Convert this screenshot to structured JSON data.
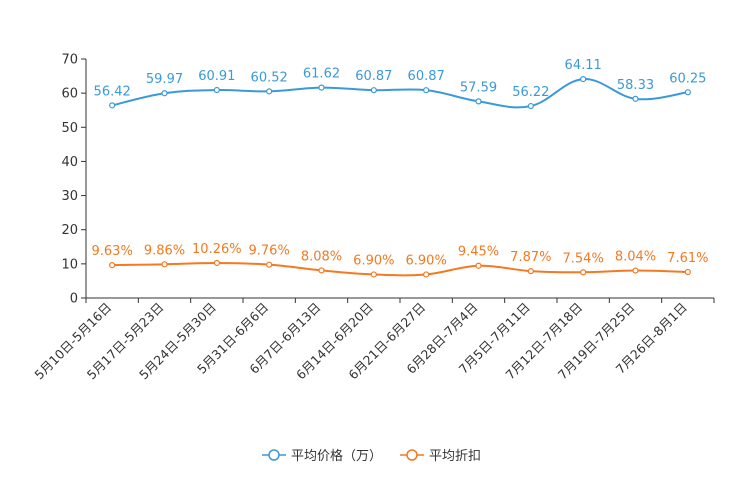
{
  "chart_data": {
    "type": "line",
    "categories": [
      "5月10日-5月16日",
      "5月17日-5月23日",
      "5月24日-5月30日",
      "5月31日-6月6日",
      "6月7日-6月13日",
      "6月14日-6月20日",
      "6月21日-6月27日",
      "6月28日-7月4日",
      "7月5日-7月11日",
      "7月12日-7月18日",
      "7月19日-7月25日",
      "7月26日-8月1日"
    ],
    "ylim": [
      0,
      70
    ],
    "yticks": [
      0,
      10,
      20,
      30,
      40,
      50,
      60,
      70
    ],
    "series": [
      {
        "name": "平均价格（万）",
        "color": "#3a9ad9",
        "values": [
          56.42,
          59.97,
          60.91,
          60.52,
          61.62,
          60.87,
          60.87,
          57.59,
          56.22,
          64.11,
          58.33,
          60.25
        ],
        "labels": [
          "56.42",
          "59.97",
          "60.91",
          "60.52",
          "61.62",
          "60.87",
          "60.87",
          "57.59",
          "56.22",
          "64.11",
          "58.33",
          "60.25"
        ]
      },
      {
        "name": "平均折扣",
        "color": "#f47920",
        "values": [
          9.63,
          9.86,
          10.26,
          9.76,
          8.08,
          6.9,
          6.9,
          9.45,
          7.87,
          7.54,
          8.04,
          7.61
        ],
        "labels": [
          "9.63%",
          "9.86%",
          "10.26%",
          "9.76%",
          "8.08%",
          "6.90%",
          "6.90%",
          "9.45%",
          "7.87%",
          "7.54%",
          "8.04%",
          "7.61%"
        ]
      }
    ],
    "legend_position": "bottom-center"
  }
}
